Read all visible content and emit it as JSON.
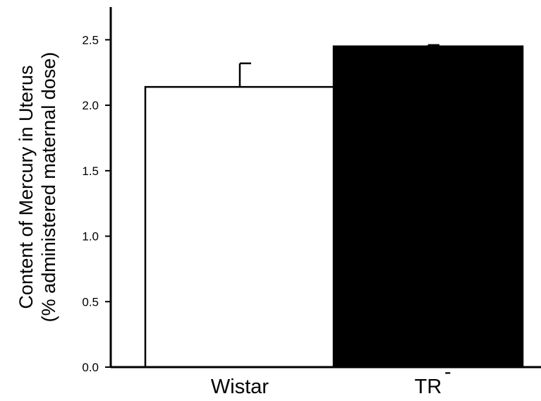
{
  "chart_data": {
    "type": "bar",
    "ylabel_lines": [
      "Content of Mercury in Uterus",
      "(% administered maternal dose)"
    ],
    "categories": [
      {
        "label": "Wistar",
        "superscript": ""
      },
      {
        "label": "TR",
        "superscript": "-"
      }
    ],
    "values": [
      2.14,
      2.45
    ],
    "errors": [
      0.18,
      0.01
    ],
    "bar_colors": [
      "#ffffff",
      "#000000"
    ],
    "ylim": [
      0,
      2.75
    ],
    "yticks": [
      "0.0",
      "0.5",
      "1.0",
      "1.5",
      "2.0",
      "2.5"
    ],
    "grid": false,
    "legend": "none"
  }
}
